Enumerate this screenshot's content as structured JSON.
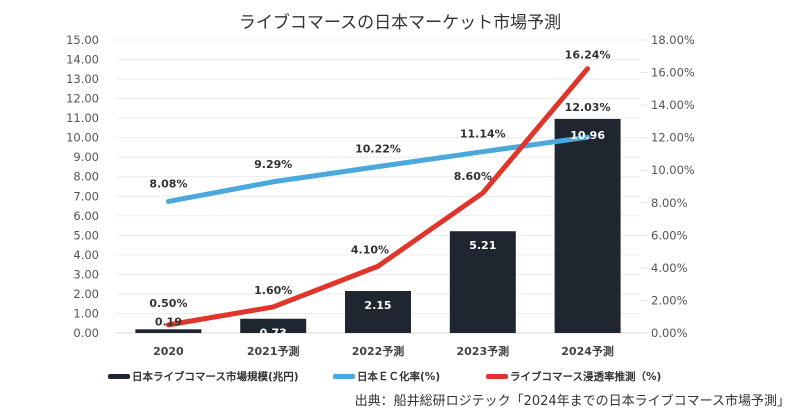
{
  "chart_data": {
    "type": "bar+line",
    "title": "ライブコマースの日本マーケット市場予測",
    "categories": [
      "2020",
      "2021予測",
      "2022予測",
      "2023予測",
      "2024予測"
    ],
    "series": [
      {
        "name": "日本ライブコマース市場規模(兆円)",
        "type": "bar",
        "axis": "left",
        "color": "#1f2630",
        "values": [
          0.19,
          0.73,
          2.15,
          5.21,
          10.96
        ],
        "labels": [
          "0.19",
          "0.73",
          "2.15",
          "5.21",
          "10.96"
        ]
      },
      {
        "name": "日本EC化率(%)",
        "type": "line",
        "axis": "right",
        "color": "#4aa8dc",
        "values": [
          8.08,
          9.29,
          10.22,
          11.14,
          12.03
        ],
        "labels": [
          "8.08%",
          "9.29%",
          "10.22%",
          "11.14%",
          "12.03%"
        ]
      },
      {
        "name": "ライブコマース浸透率推測（%)",
        "type": "line",
        "axis": "right",
        "color": "#e0352b",
        "values": [
          0.5,
          1.6,
          4.1,
          8.6,
          16.24
        ],
        "labels": [
          "0.50%",
          "1.60%",
          "4.10%",
          "8.60%",
          "16.24%"
        ]
      }
    ],
    "y_left": {
      "min": 0,
      "max": 15,
      "step": 1,
      "ticks": [
        "0.00",
        "1.00",
        "2.00",
        "3.00",
        "4.00",
        "5.00",
        "6.00",
        "7.00",
        "8.00",
        "9.00",
        "10.00",
        "11.00",
        "12.00",
        "13.00",
        "14.00",
        "15.00"
      ]
    },
    "y_right": {
      "min": 0,
      "max": 18,
      "step": 2,
      "ticks": [
        "0.00%",
        "2.00%",
        "4.00%",
        "6.00%",
        "8.00%",
        "10.00%",
        "12.00%",
        "14.00%",
        "16.00%",
        "18.00%"
      ]
    },
    "grid": true,
    "legend": "bottom"
  },
  "legend": {
    "items": [
      {
        "label": "日本ライブコマース市場規模(兆円)",
        "color": "#1f2630"
      },
      {
        "label": "日本ＥＣ化率(%)",
        "color": "#4aa8dc"
      },
      {
        "label": "ライブコマース浸透率推測（%)",
        "color": "#e0352b"
      }
    ]
  },
  "source": "出典：船井総研ロジテック「2024年までの日本ライブコマース市場予測」"
}
